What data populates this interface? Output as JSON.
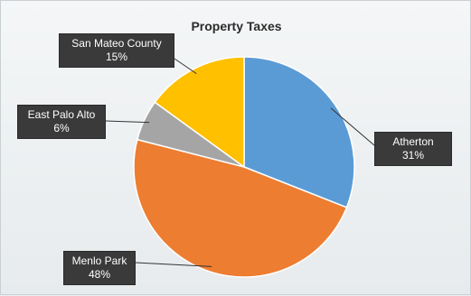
{
  "chart_data": {
    "type": "pie",
    "title": "Property Taxes",
    "slices": [
      {
        "label": "Atherton",
        "value": 31,
        "display": "31%",
        "color": "#5b9bd5"
      },
      {
        "label": "Menlo Park",
        "value": 48,
        "display": "48%",
        "color": "#ed7d31"
      },
      {
        "label": "East Palo Alto",
        "value": 6,
        "display": "6%",
        "color": "#a5a5a5"
      },
      {
        "label": "San Mateo County",
        "value": 15,
        "display": "15%",
        "color": "#ffc000"
      }
    ],
    "start_angle": "12 o'clock, clockwise",
    "legend": "none",
    "data_labels": "callouts"
  }
}
